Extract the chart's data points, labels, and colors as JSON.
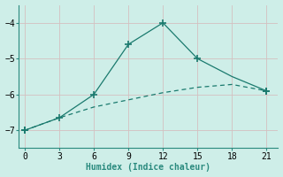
{
  "xlabel": "Humidex (Indice chaleur)",
  "ylabel": "",
  "background_color": "#ceeee8",
  "grid_color": "#b8ddd8",
  "line_color": "#1a7a6e",
  "axis_color": "#2a8a7e",
  "xlim": [
    -0.5,
    22
  ],
  "ylim": [
    -7.5,
    -3.5
  ],
  "xticks": [
    0,
    3,
    6,
    9,
    12,
    15,
    18,
    21
  ],
  "yticks": [
    -7,
    -6,
    -5,
    -4
  ],
  "line1_x": [
    0,
    3,
    6,
    9,
    12,
    15,
    18,
    21
  ],
  "line1_y": [
    -7.0,
    -6.65,
    -6.0,
    -4.6,
    -4.0,
    -5.0,
    -5.5,
    -5.9
  ],
  "line2_x": [
    0,
    3,
    6,
    9,
    12,
    15,
    18,
    21
  ],
  "line2_y": [
    -7.0,
    -6.65,
    -6.35,
    -6.15,
    -5.95,
    -5.8,
    -5.72,
    -5.9
  ],
  "line1_markers": [
    0,
    2,
    3,
    4,
    5,
    7
  ],
  "line2_markers": [
    0,
    1,
    7
  ]
}
